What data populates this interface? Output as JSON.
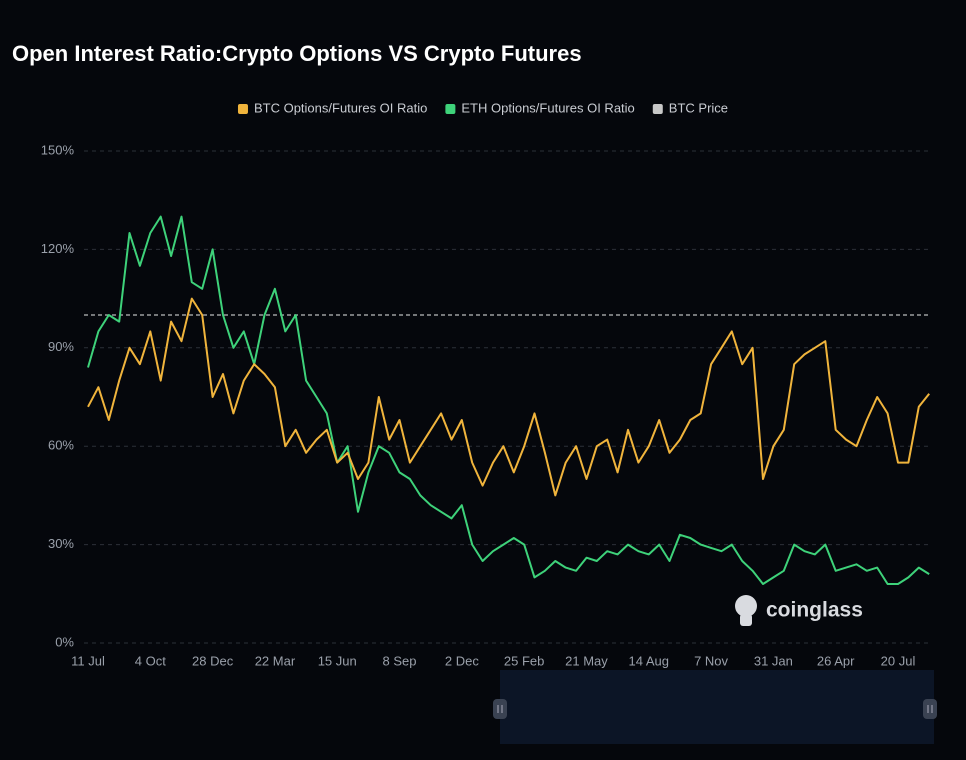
{
  "chart_data": {
    "type": "line",
    "title": "Open Interest Ratio:Crypto Options VS Crypto Futures",
    "watermark": "coinglass",
    "categories": [
      "11 Jul",
      null,
      null,
      null,
      null,
      null,
      "4 Oct",
      null,
      null,
      null,
      null,
      null,
      "28 Dec",
      null,
      null,
      null,
      null,
      null,
      "22 Mar",
      null,
      null,
      null,
      null,
      null,
      "15 Jun",
      null,
      null,
      null,
      null,
      null,
      "8 Sep",
      null,
      null,
      null,
      null,
      null,
      "2 Dec",
      null,
      null,
      null,
      null,
      null,
      "25 Feb",
      null,
      null,
      null,
      null,
      null,
      "21 May",
      null,
      null,
      null,
      null,
      null,
      "14 Aug",
      null,
      null,
      null,
      null,
      null,
      "7 Nov",
      null,
      null,
      null,
      null,
      null,
      "31 Jan",
      null,
      null,
      null,
      null,
      null,
      "26 Apr",
      null,
      null,
      null,
      null,
      null,
      "20 Jul",
      null,
      null,
      null
    ],
    "series": [
      {
        "name": "BTC Options/Futures OI Ratio",
        "color": "#f0b43c",
        "values": [
          72,
          78,
          68,
          80,
          90,
          85,
          95,
          80,
          98,
          92,
          105,
          100,
          75,
          82,
          70,
          80,
          85,
          82,
          78,
          60,
          65,
          58,
          62,
          65,
          55,
          58,
          50,
          55,
          75,
          62,
          68,
          55,
          60,
          65,
          70,
          62,
          68,
          55,
          48,
          55,
          60,
          52,
          60,
          70,
          58,
          45,
          55,
          60,
          50,
          60,
          62,
          52,
          65,
          55,
          60,
          68,
          58,
          62,
          68,
          70,
          85,
          90,
          95,
          85,
          90,
          50,
          60,
          65,
          85,
          88,
          90,
          92,
          65,
          62,
          60,
          68,
          75,
          70,
          55,
          55,
          72,
          76
        ]
      },
      {
        "name": "ETH Options/Futures OI Ratio",
        "color": "#3ed27a",
        "values": [
          84,
          95,
          100,
          98,
          125,
          115,
          125,
          130,
          118,
          130,
          110,
          108,
          120,
          100,
          90,
          95,
          85,
          100,
          108,
          95,
          100,
          80,
          75,
          70,
          55,
          60,
          40,
          52,
          60,
          58,
          52,
          50,
          45,
          42,
          40,
          38,
          42,
          30,
          25,
          28,
          30,
          32,
          30,
          20,
          22,
          25,
          23,
          22,
          26,
          25,
          28,
          27,
          30,
          28,
          27,
          30,
          25,
          33,
          32,
          30,
          29,
          28,
          30,
          25,
          22,
          18,
          20,
          22,
          30,
          28,
          27,
          30,
          22,
          23,
          24,
          22,
          23,
          18,
          18,
          20,
          23,
          21
        ]
      },
      {
        "name": "BTC Price",
        "color": "#c8c8c8",
        "values": [
          null,
          null,
          null,
          null,
          null,
          null,
          null,
          null,
          null,
          null,
          null,
          null,
          null,
          null,
          null,
          null,
          null,
          null,
          null,
          null,
          null,
          null,
          null,
          null,
          null,
          null,
          null,
          null,
          null,
          null,
          null,
          null,
          null,
          null,
          null,
          null,
          null,
          null,
          null,
          null,
          null,
          null,
          null,
          null,
          null,
          null,
          null,
          null,
          null,
          null,
          null,
          null,
          null,
          null,
          null,
          null,
          null,
          null,
          null,
          null,
          null,
          null,
          null,
          null,
          null,
          null,
          null,
          null,
          null,
          null,
          null,
          null,
          null,
          null,
          null,
          null,
          null,
          null,
          null,
          null,
          null,
          null
        ]
      }
    ],
    "ylim": [
      0,
      150
    ],
    "yticks": [
      {
        "value": 0,
        "label": "0%"
      },
      {
        "value": 30,
        "label": "30%"
      },
      {
        "value": 60,
        "label": "60%"
      },
      {
        "value": 90,
        "label": "90%"
      },
      {
        "value": 120,
        "label": "120%"
      },
      {
        "value": 150,
        "label": "150%"
      }
    ],
    "reference_line": 100,
    "grid": true
  }
}
